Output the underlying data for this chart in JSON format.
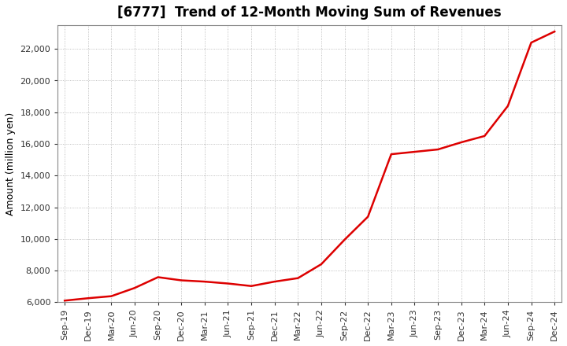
{
  "title": "[6777]  Trend of 12-Month Moving Sum of Revenues",
  "ylabel": "Amount (million yen)",
  "line_color": "#dd0000",
  "background_color": "#ffffff",
  "plot_bg_color": "#ffffff",
  "grid_color": "#999999",
  "title_fontsize": 12,
  "axis_fontsize": 9,
  "tick_fontsize": 8,
  "x_labels": [
    "Sep-19",
    "Dec-19",
    "Mar-20",
    "Jun-20",
    "Sep-20",
    "Dec-20",
    "Mar-21",
    "Jun-21",
    "Sep-21",
    "Dec-21",
    "Mar-22",
    "Jun-22",
    "Sep-22",
    "Dec-22",
    "Mar-23",
    "Jun-23",
    "Sep-23",
    "Dec-23",
    "Mar-24",
    "Jun-24",
    "Sep-24",
    "Dec-24"
  ],
  "x_values": [
    0,
    1,
    2,
    3,
    4,
    5,
    6,
    7,
    8,
    9,
    10,
    11,
    12,
    13,
    14,
    15,
    16,
    17,
    18,
    19,
    20,
    21
  ],
  "y_values": [
    6100,
    6250,
    6380,
    6900,
    7580,
    7380,
    7300,
    7180,
    7020,
    7300,
    7520,
    8400,
    9950,
    11400,
    15350,
    15500,
    15650,
    16100,
    16500,
    18400,
    22400,
    23100
  ],
  "ylim": [
    6000,
    23500
  ],
  "yticks": [
    6000,
    8000,
    10000,
    12000,
    14000,
    16000,
    18000,
    20000,
    22000
  ],
  "line_width": 1.8
}
